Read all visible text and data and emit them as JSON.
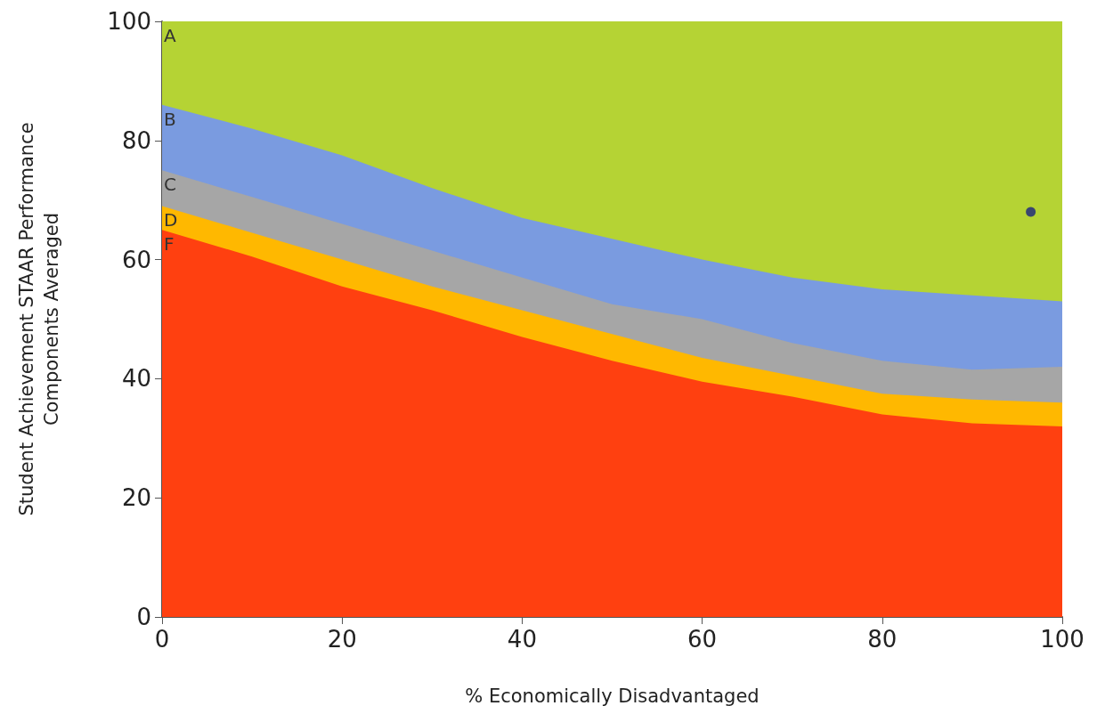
{
  "chart_data": {
    "type": "area",
    "stacked": true,
    "xlabel": "% Economically Disadvantaged",
    "ylabel": "Student Achievement STAAR Performance\nComponents Averaged",
    "x": [
      0,
      10,
      20,
      30,
      40,
      50,
      60,
      70,
      80,
      90,
      100
    ],
    "series": [
      {
        "name": "F",
        "color": "#ff4010",
        "values": [
          65,
          60.5,
          55.5,
          51.5,
          47,
          43,
          39.5,
          37,
          34,
          32.5,
          32
        ]
      },
      {
        "name": "D",
        "color": "#ffb800",
        "values": [
          4,
          4,
          4.5,
          4,
          4.5,
          4.5,
          4,
          3.5,
          3.5,
          4,
          4
        ]
      },
      {
        "name": "C",
        "color": "#a6a6a6",
        "values": [
          6,
          6,
          6,
          6,
          5.5,
          5,
          6.5,
          5.5,
          5.5,
          5,
          6
        ]
      },
      {
        "name": "B",
        "color": "#7a9be0",
        "values": [
          11,
          11.5,
          11.5,
          10.5,
          10,
          11,
          10,
          11,
          12,
          12.5,
          11
        ]
      },
      {
        "name": "A",
        "color": "#b5d334",
        "values": [
          14,
          18,
          22.5,
          28,
          33,
          36.5,
          40,
          43,
          45,
          46,
          47
        ]
      },
      {
        "type": "scatter",
        "color": "#1a237e",
        "x": [
          96.5
        ],
        "values": [
          68
        ]
      }
    ],
    "xlim": [
      0,
      100
    ],
    "xticks": [
      0,
      20,
      40,
      60,
      80,
      100
    ],
    "ylim": [
      0,
      100
    ],
    "yticks": [
      0,
      20,
      40,
      60,
      80,
      100
    ],
    "grid": false,
    "legend": false
  }
}
